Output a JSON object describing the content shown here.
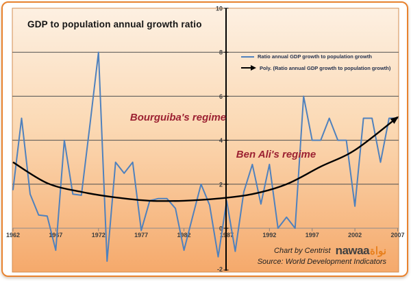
{
  "title": "GDP to population annual growth ratio",
  "annotations": {
    "bourguiba": "Bourguiba's regime",
    "ben_ali": "Ben Ali's regime"
  },
  "legend": [
    {
      "label": "Ratio annual GDP growth to population growth",
      "marker": "line",
      "color": "#4F81BD"
    },
    {
      "label": "Poly. (Ratio annual GDP growth to  population growth)",
      "marker": "arrow",
      "color": "#000000"
    }
  ],
  "credits": {
    "chart_by": "Chart by Centrist",
    "source": "Source: World Development Indicators",
    "logo_latin": "nawaa",
    "logo_arabic": "نواة"
  },
  "colors": {
    "frame_border": "#E8822E",
    "plot_border": "#D28C50",
    "plot_gradient_top": "#FDF0E2",
    "plot_gradient_mid": "#FBD9B4",
    "plot_gradient_bottom": "#F5A96B",
    "gridline": "#4F4F4F",
    "zero_line": "#A2948A",
    "category_tick": "#8D8178",
    "axis": "#000000",
    "series_line": "#4F81BD",
    "trend_line": "#000000",
    "annotation_text": "#9C2132",
    "tick_text": "#3D3D3D"
  },
  "chart_data": {
    "type": "line",
    "title": "GDP to population annual growth ratio",
    "xlabel": "",
    "ylabel": "",
    "xlim": [
      1962,
      2007
    ],
    "ylim": [
      -2,
      10
    ],
    "grid": true,
    "legend_position": "upper-center",
    "x_ticks": [
      1962,
      1967,
      1972,
      1977,
      1982,
      1987,
      1992,
      1997,
      2002,
      2007
    ],
    "y_ticks": [
      10,
      8,
      6,
      4,
      2,
      0,
      -2
    ],
    "x": [
      1962,
      1963,
      1964,
      1965,
      1966,
      1967,
      1968,
      1969,
      1970,
      1971,
      1972,
      1973,
      1974,
      1975,
      1976,
      1977,
      1978,
      1979,
      1980,
      1981,
      1982,
      1983,
      1984,
      1985,
      1986,
      1987,
      1988,
      1989,
      1990,
      1991,
      1992,
      1993,
      1994,
      1995,
      1996,
      1997,
      1998,
      1999,
      2000,
      2001,
      2002,
      2003,
      2004,
      2005,
      2006,
      2007
    ],
    "series": [
      {
        "name": "Ratio annual GDP growth to population growth",
        "color": "#4F81BD",
        "values": [
          1.75,
          5,
          1.55,
          0.6,
          0.55,
          -1,
          4,
          1.55,
          1.5,
          4.7,
          8,
          -1.5,
          3,
          2.5,
          3,
          -0.1,
          1.25,
          1.35,
          1.35,
          0.9,
          -1,
          0.5,
          2,
          1.05,
          -1.3,
          1.25,
          -1.05,
          1.65,
          2.9,
          1.1,
          2.9,
          0,
          0.5,
          0,
          6,
          4,
          4,
          5,
          4,
          4,
          1,
          5,
          5,
          3,
          5,
          5
        ]
      },
      {
        "name": "Poly. (Ratio annual GDP growth to  population growth)",
        "color": "#000000",
        "style": "trend-arrow",
        "points": [
          [
            1962,
            3.0
          ],
          [
            1966,
            2.05
          ],
          [
            1970,
            1.65
          ],
          [
            1974,
            1.4
          ],
          [
            1978,
            1.25
          ],
          [
            1982,
            1.25
          ],
          [
            1986,
            1.35
          ],
          [
            1990,
            1.55
          ],
          [
            1994,
            2.0
          ],
          [
            1998,
            2.8
          ],
          [
            2002,
            3.55
          ],
          [
            2007,
            5.05
          ]
        ]
      }
    ]
  }
}
